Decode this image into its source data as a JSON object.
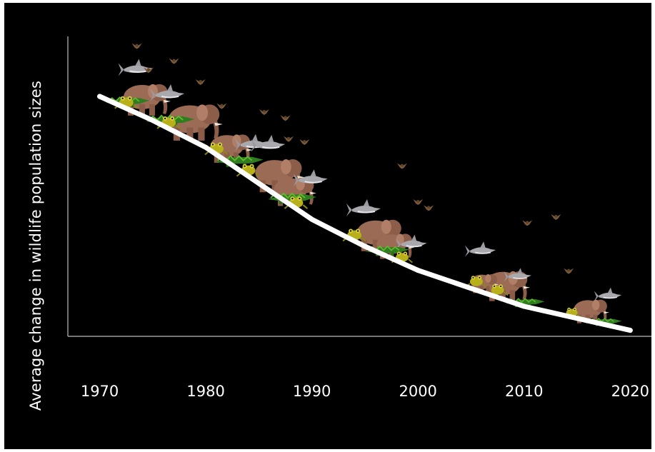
{
  "chart_data": {
    "type": "line",
    "title": "",
    "xlabel": "",
    "ylabel": "Average change in wildlife population sizes",
    "x_ticks": [
      "1970",
      "1980",
      "1990",
      "2000",
      "2010",
      "2020"
    ],
    "xlim": [
      1967,
      2022
    ],
    "ylim": [
      0,
      1
    ],
    "grid": false,
    "legend": "none",
    "series": [
      {
        "x": [
          1970,
          1975,
          1980,
          1985,
          1990,
          1995,
          2000,
          2005,
          2010,
          2015,
          2020
        ],
        "values": [
          0.8,
          0.72,
          0.63,
          0.51,
          0.39,
          0.3,
          0.22,
          0.16,
          0.1,
          0.06,
          0.02
        ],
        "color": "#ffffff"
      }
    ]
  },
  "colors": {
    "background": "#000000",
    "axis": "#bdbdbd",
    "line": "#ffffff",
    "elephant": "#9b6b55",
    "crocodile": "#2f7d1f",
    "frog": "#b7b01a",
    "shark": "#a8a8ad",
    "bird": "#7a5a3c"
  },
  "decorations": {
    "animal_icons": [
      "elephant-icon",
      "crocodile-icon",
      "frog-icon",
      "shark-icon",
      "bird-icon"
    ]
  }
}
